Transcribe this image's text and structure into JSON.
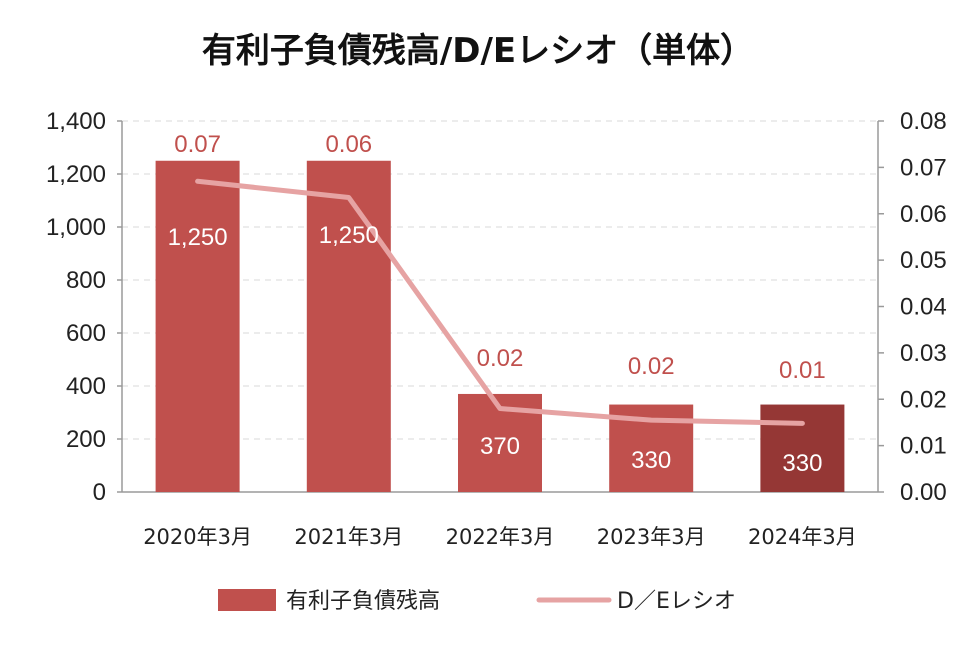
{
  "colors": {
    "bar": "#c0504d",
    "bar_highlight": "#953735",
    "line": "#e6a3a3",
    "ratio_label": "#c0504d",
    "axis": "#9a9a9a",
    "grid": "#d9d9d9",
    "plot_bg": "#ffffff"
  },
  "chart_data": {
    "type": "bar",
    "title": "有利子負債残高/D/Eレシオ（単体）",
    "categories": [
      "2020年3月",
      "2021年3月",
      "2022年3月",
      "2023年3月",
      "2024年3月"
    ],
    "series": [
      {
        "name": "有利子負債残高",
        "type": "bar",
        "axis": "left",
        "values": [
          1250,
          1250,
          370,
          330,
          330
        ],
        "labels": [
          "1,250",
          "1,250",
          "370",
          "330",
          "330"
        ]
      },
      {
        "name": "D／Eレシオ",
        "type": "line",
        "axis": "right",
        "values": [
          0.067,
          0.0635,
          0.018,
          0.0155,
          0.0148
        ],
        "labels": [
          "0.07",
          "0.06",
          "0.02",
          "0.02",
          "0.01"
        ]
      }
    ],
    "y_left": {
      "range": [
        0,
        1400
      ],
      "ticks": [
        0,
        200,
        400,
        600,
        800,
        1000,
        1200,
        1400
      ],
      "tick_labels": [
        "0",
        "200",
        "400",
        "600",
        "800",
        "1,000",
        "1,200",
        "1,400"
      ]
    },
    "y_right": {
      "range": [
        0,
        0.08
      ],
      "ticks": [
        0,
        0.01,
        0.02,
        0.03,
        0.04,
        0.05,
        0.06,
        0.07,
        0.08
      ],
      "tick_labels": [
        "0.00",
        "0.01",
        "0.02",
        "0.03",
        "0.04",
        "0.05",
        "0.06",
        "0.07",
        "0.08"
      ]
    },
    "grid": true,
    "legend": "bottom",
    "highlight_category": "2024年3月"
  }
}
